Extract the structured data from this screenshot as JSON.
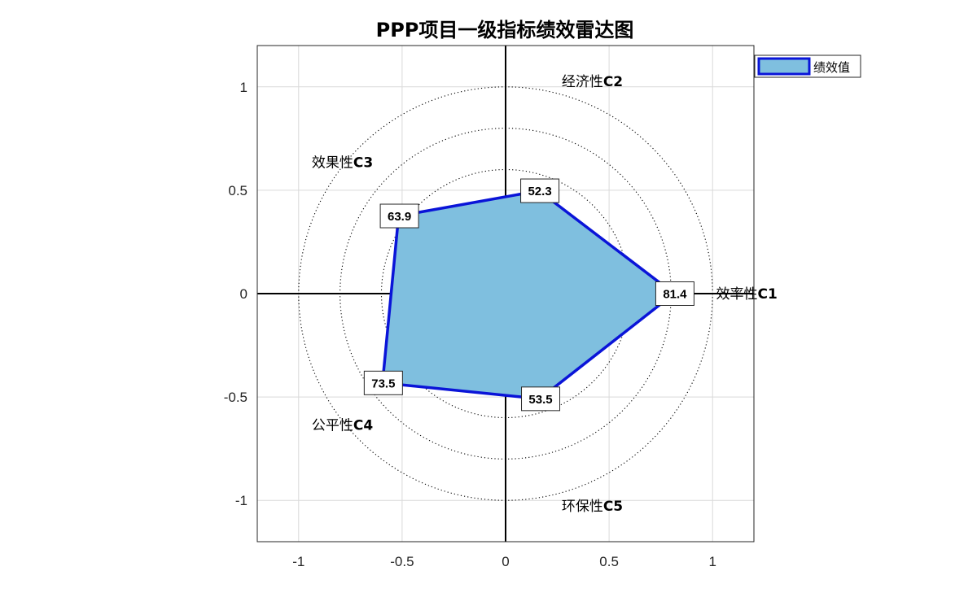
{
  "chart_data": {
    "type": "radar",
    "title": "PPP项目一级指标绩效雷达图",
    "categories": [
      "效率性C1",
      "经济性C2",
      "效果性C3",
      "公平性C4",
      "环保性C5"
    ],
    "series": [
      {
        "name": "绩效值",
        "values": [
          81.4,
          52.3,
          63.9,
          73.5,
          53.5
        ]
      }
    ],
    "xlim": [
      -1.2,
      1.2
    ],
    "ylim": [
      -1.2,
      1.2
    ],
    "xticks": [
      -1,
      -0.5,
      0,
      0.5,
      1
    ],
    "yticks": [
      1,
      0.5,
      0,
      -0.5,
      -1
    ],
    "x_tick_labels": [
      "-1",
      "-0.5",
      "0",
      "0.5",
      "1"
    ],
    "y_tick_labels": [
      "1",
      "0.5",
      "0",
      "-0.5",
      "-1"
    ],
    "rings": 5,
    "ring_max": 100,
    "grid": true,
    "legend_position": "top-right",
    "colors": {
      "fill": "#7fbfdf",
      "edge": "#0a14d8",
      "axis": "#000000",
      "grid": "#d9d9d9"
    }
  }
}
